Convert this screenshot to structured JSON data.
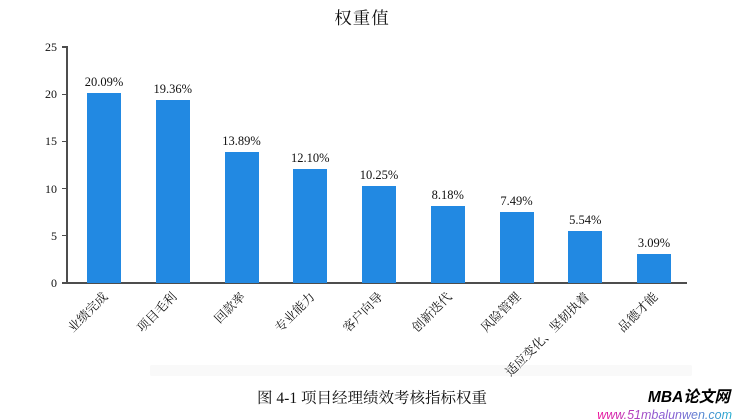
{
  "chart_data": {
    "type": "bar",
    "title": "权重值",
    "categories": [
      "业绩完成",
      "项目毛利",
      "回款率",
      "专业能力",
      "客户向导",
      "创新迭代",
      "风险管理",
      "适应变化、坚韧执着",
      "品德才能"
    ],
    "values": [
      20.09,
      19.36,
      13.89,
      12.1,
      10.25,
      8.18,
      7.49,
      5.54,
      3.09
    ],
    "value_labels": [
      "20.09%",
      "19.36%",
      "13.89%",
      "12.10%",
      "10.25%",
      "8.18%",
      "7.49%",
      "5.54%",
      "3.09%"
    ],
    "xlabel": "",
    "ylabel": "",
    "ylim": [
      0,
      25
    ],
    "yticks": [
      0,
      5,
      10,
      15,
      20,
      25
    ],
    "grid": "off",
    "legend": "none",
    "bar_color": "#2289E2",
    "axis_color": "#4d4d4d"
  },
  "caption": "图 4-1 项目经理绩效考核指标权重",
  "watermark": {
    "brand": "MBA论文网",
    "url": "www.51mbalunwen.com",
    "brand_color": "#000000",
    "url_gradient": [
      "#ef109b",
      "#8a5ad2",
      "#21adcf"
    ]
  }
}
